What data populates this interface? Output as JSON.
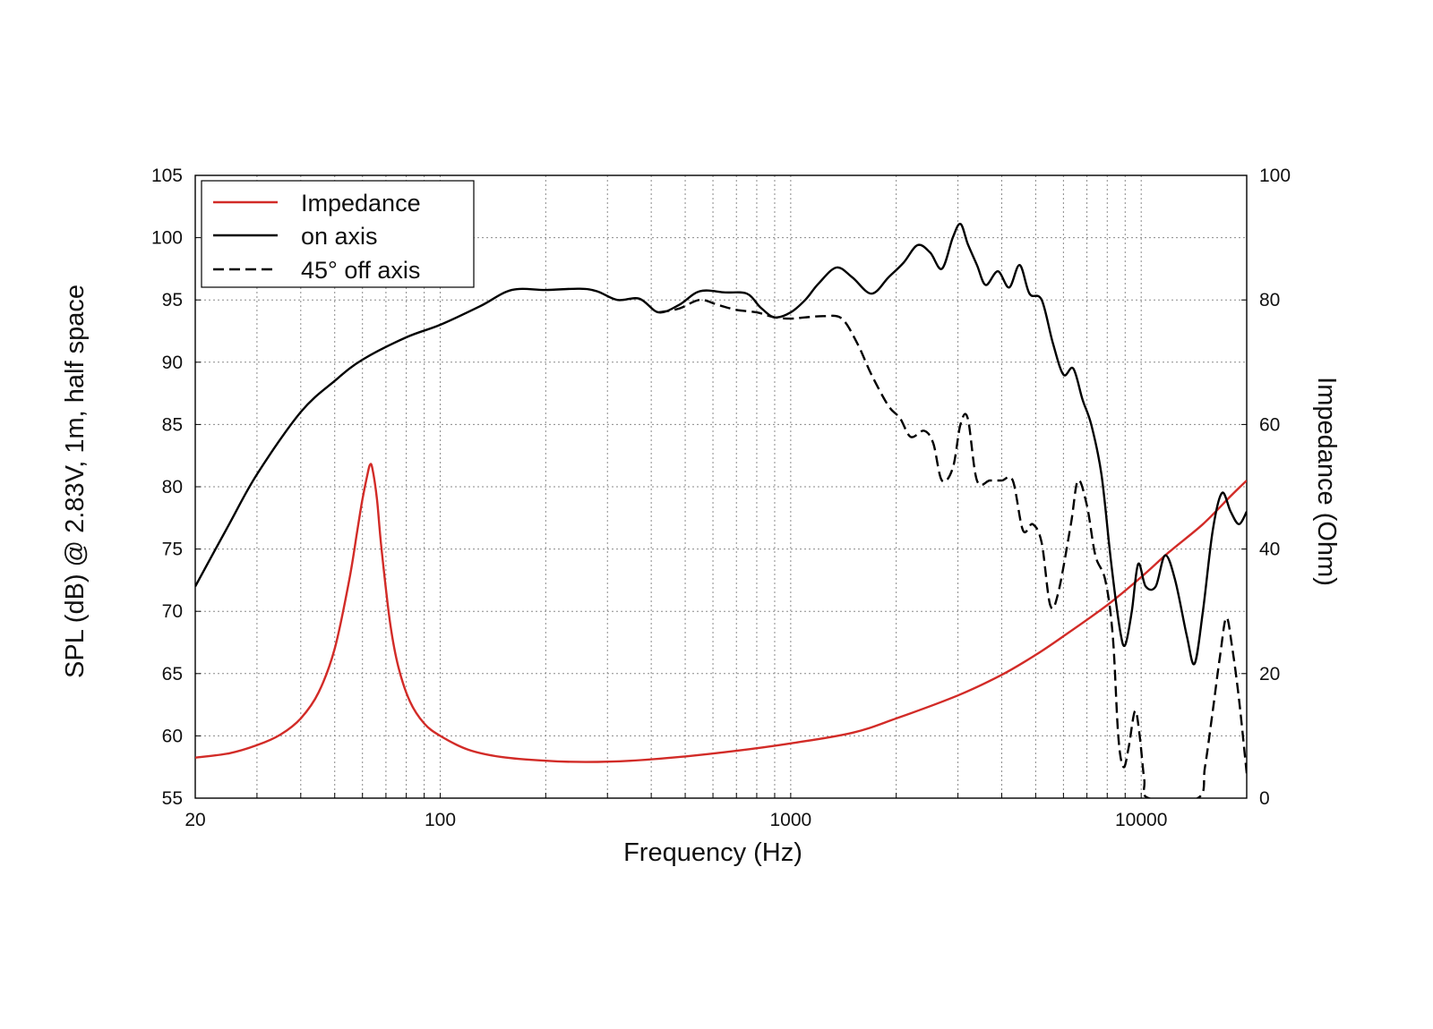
{
  "chart_data": {
    "type": "line",
    "title": "",
    "xlabel": "Frequency (Hz)",
    "ylabel_left": "SPL (dB) @ 2.83V, 1m, half space",
    "ylabel_right": "Impedance (Ohm)",
    "x_scale": "log",
    "xlim": [
      20,
      20000
    ],
    "ylim_left": [
      55,
      105
    ],
    "ylim_right": [
      0,
      100
    ],
    "x_ticks": [
      20,
      100,
      1000,
      10000
    ],
    "x_tick_labels": [
      "20",
      "100",
      "1000",
      "10000"
    ],
    "y_ticks_left": [
      55,
      60,
      65,
      70,
      75,
      80,
      85,
      90,
      95,
      100,
      105
    ],
    "y_tick_labels_left": [
      "55",
      "60",
      "65",
      "70",
      "75",
      "80",
      "85",
      "90",
      "95",
      "100",
      "105"
    ],
    "y_ticks_right": [
      0,
      20,
      40,
      60,
      80,
      100
    ],
    "y_tick_labels_right": [
      "0",
      "20",
      "40",
      "60",
      "80",
      "100"
    ],
    "grid": true,
    "legend_position": "top-left",
    "series": [
      {
        "name": "Impedance",
        "axis": "right",
        "color": "#d22b27",
        "style": "solid",
        "points": [
          [
            20,
            6.5
          ],
          [
            25,
            7.2
          ],
          [
            30,
            8.5
          ],
          [
            35,
            10.2
          ],
          [
            40,
            12.8
          ],
          [
            45,
            17
          ],
          [
            50,
            24
          ],
          [
            55,
            35
          ],
          [
            58,
            43
          ],
          [
            60,
            48
          ],
          [
            62,
            52
          ],
          [
            63,
            53.5
          ],
          [
            64,
            53
          ],
          [
            66,
            48
          ],
          [
            68,
            40
          ],
          [
            72,
            28
          ],
          [
            76,
            21
          ],
          [
            82,
            15.5
          ],
          [
            90,
            12
          ],
          [
            100,
            10
          ],
          [
            120,
            7.8
          ],
          [
            150,
            6.6
          ],
          [
            200,
            6
          ],
          [
            260,
            5.8
          ],
          [
            350,
            6
          ],
          [
            500,
            6.7
          ],
          [
            700,
            7.6
          ],
          [
            1000,
            8.8
          ],
          [
            1500,
            10.5
          ],
          [
            2000,
            12.8
          ],
          [
            3000,
            16.5
          ],
          [
            4000,
            19.8
          ],
          [
            5000,
            23
          ],
          [
            6000,
            26
          ],
          [
            8000,
            31
          ],
          [
            10000,
            35.5
          ],
          [
            12000,
            39.5
          ],
          [
            15000,
            44
          ],
          [
            18000,
            48.5
          ],
          [
            20000,
            51
          ]
        ]
      },
      {
        "name": "on axis",
        "axis": "left",
        "color": "#000000",
        "style": "solid",
        "points": [
          [
            20,
            72
          ],
          [
            25,
            77
          ],
          [
            30,
            81
          ],
          [
            40,
            86
          ],
          [
            50,
            88.5
          ],
          [
            60,
            90.2
          ],
          [
            80,
            92
          ],
          [
            100,
            93
          ],
          [
            130,
            94.5
          ],
          [
            160,
            95.8
          ],
          [
            200,
            95.8
          ],
          [
            250,
            95.9
          ],
          [
            280,
            95.7
          ],
          [
            320,
            95
          ],
          [
            370,
            95.1
          ],
          [
            420,
            94
          ],
          [
            480,
            94.6
          ],
          [
            550,
            95.7
          ],
          [
            650,
            95.6
          ],
          [
            750,
            95.5
          ],
          [
            820,
            94.4
          ],
          [
            900,
            93.6
          ],
          [
            1000,
            94
          ],
          [
            1100,
            95
          ],
          [
            1200,
            96.3
          ],
          [
            1350,
            97.6
          ],
          [
            1500,
            96.8
          ],
          [
            1700,
            95.5
          ],
          [
            1900,
            96.8
          ],
          [
            2100,
            98
          ],
          [
            2300,
            99.4
          ],
          [
            2500,
            98.8
          ],
          [
            2700,
            97.5
          ],
          [
            2900,
            100
          ],
          [
            3050,
            101.1
          ],
          [
            3200,
            99.5
          ],
          [
            3400,
            97.8
          ],
          [
            3600,
            96.2
          ],
          [
            3900,
            97.3
          ],
          [
            4200,
            96
          ],
          [
            4500,
            97.8
          ],
          [
            4800,
            95.5
          ],
          [
            5200,
            95
          ],
          [
            5600,
            91.5
          ],
          [
            6000,
            89
          ],
          [
            6400,
            89.5
          ],
          [
            6800,
            87
          ],
          [
            7200,
            85
          ],
          [
            7700,
            81
          ],
          [
            8200,
            74
          ],
          [
            8700,
            68.5
          ],
          [
            9000,
            67.3
          ],
          [
            9400,
            70
          ],
          [
            9800,
            73.8
          ],
          [
            10300,
            72
          ],
          [
            11000,
            72
          ],
          [
            11700,
            74.5
          ],
          [
            12500,
            72.5
          ],
          [
            13500,
            68
          ],
          [
            14200,
            65.8
          ],
          [
            15000,
            70
          ],
          [
            16000,
            76.5
          ],
          [
            17000,
            79.5
          ],
          [
            18000,
            78
          ],
          [
            19000,
            77
          ],
          [
            20000,
            78
          ]
        ]
      },
      {
        "name": "45° off axis",
        "axis": "left",
        "color": "#000000",
        "style": "dashed",
        "points": [
          [
            420,
            94
          ],
          [
            480,
            94.3
          ],
          [
            550,
            95
          ],
          [
            620,
            94.6
          ],
          [
            700,
            94.2
          ],
          [
            800,
            94
          ],
          [
            900,
            93.6
          ],
          [
            1000,
            93.5
          ],
          [
            1100,
            93.6
          ],
          [
            1250,
            93.7
          ],
          [
            1400,
            93.5
          ],
          [
            1550,
            91.5
          ],
          [
            1700,
            89
          ],
          [
            1900,
            86.5
          ],
          [
            2050,
            85.5
          ],
          [
            2200,
            84
          ],
          [
            2400,
            84.5
          ],
          [
            2550,
            83.5
          ],
          [
            2700,
            80.5
          ],
          [
            2900,
            81.5
          ],
          [
            3050,
            85
          ],
          [
            3200,
            85.5
          ],
          [
            3400,
            80.5
          ],
          [
            3700,
            80.5
          ],
          [
            4000,
            80.5
          ],
          [
            4300,
            80.5
          ],
          [
            4600,
            76.5
          ],
          [
            4900,
            77
          ],
          [
            5200,
            75.5
          ],
          [
            5500,
            70.5
          ],
          [
            5800,
            71.5
          ],
          [
            6300,
            77
          ],
          [
            6600,
            80.5
          ],
          [
            7000,
            78.5
          ],
          [
            7400,
            74.5
          ],
          [
            7900,
            72.5
          ],
          [
            8300,
            68
          ],
          [
            8600,
            60
          ],
          [
            8900,
            57.5
          ],
          [
            9200,
            59
          ],
          [
            9600,
            62
          ],
          [
            9900,
            60
          ],
          [
            10200,
            56.5
          ],
          [
            10500,
            55
          ],
          [
            14500,
            55
          ],
          [
            15200,
            57.5
          ],
          [
            16000,
            62
          ],
          [
            16800,
            66.5
          ],
          [
            17500,
            69.5
          ],
          [
            18200,
            67
          ],
          [
            19000,
            63
          ],
          [
            20000,
            57
          ]
        ]
      }
    ]
  }
}
